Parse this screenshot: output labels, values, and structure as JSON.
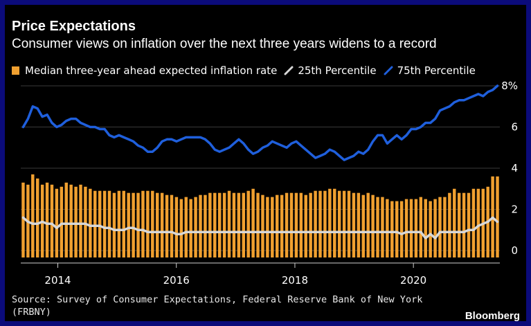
{
  "title": "Price Expectations",
  "subtitle": "Consumer views on inflation over the next three years widens to a record",
  "source": "Source: Survey of Consumer Expectations, Federal Reserve Bank of New York (FRBNY)",
  "brand": "Bloomberg",
  "chart_data": {
    "type": "bar",
    "x_start": "2013-06",
    "x_end": "2021-06",
    "ylim": [
      0,
      8
    ],
    "yticks": [
      {
        "value": 0,
        "label": "0"
      },
      {
        "value": 2,
        "label": "2"
      },
      {
        "value": 4,
        "label": "4"
      },
      {
        "value": 6,
        "label": "6"
      },
      {
        "value": 8,
        "label": "8%"
      }
    ],
    "xticks": [
      {
        "date": "2014-01",
        "label": "2014"
      },
      {
        "date": "2016-01",
        "label": "2016"
      },
      {
        "date": "2018-01",
        "label": "2018"
      },
      {
        "date": "2020-01",
        "label": "2020"
      }
    ],
    "grid": true,
    "legend_position": "top",
    "series": [
      {
        "name": "Median three-year ahead expected inflation rate",
        "type": "bar",
        "color": "#f0a030",
        "values": [
          3.3,
          3.2,
          3.7,
          3.5,
          3.2,
          3.3,
          3.2,
          3.0,
          3.1,
          3.3,
          3.2,
          3.1,
          3.2,
          3.1,
          3.0,
          2.9,
          2.9,
          2.9,
          2.9,
          2.8,
          2.9,
          2.9,
          2.8,
          2.8,
          2.8,
          2.9,
          2.9,
          2.9,
          2.8,
          2.8,
          2.7,
          2.7,
          2.6,
          2.5,
          2.6,
          2.5,
          2.6,
          2.7,
          2.7,
          2.8,
          2.8,
          2.8,
          2.8,
          2.9,
          2.8,
          2.8,
          2.8,
          2.9,
          3.0,
          2.8,
          2.7,
          2.6,
          2.6,
          2.7,
          2.7,
          2.8,
          2.8,
          2.8,
          2.8,
          2.7,
          2.8,
          2.9,
          2.9,
          2.9,
          3.0,
          3.0,
          2.9,
          2.9,
          2.9,
          2.8,
          2.8,
          2.7,
          2.8,
          2.7,
          2.6,
          2.6,
          2.5,
          2.4,
          2.4,
          2.4,
          2.5,
          2.5,
          2.5,
          2.6,
          2.5,
          2.4,
          2.5,
          2.6,
          2.6,
          2.8,
          3.0,
          2.8,
          2.8,
          2.8,
          3.0,
          3.0,
          3.0,
          3.1,
          3.6,
          3.6
        ]
      },
      {
        "name": "25th Percentile",
        "type": "line",
        "color": "#d7d7d7",
        "values": [
          1.6,
          1.4,
          1.3,
          1.3,
          1.4,
          1.3,
          1.3,
          1.1,
          1.3,
          1.3,
          1.3,
          1.3,
          1.3,
          1.3,
          1.2,
          1.2,
          1.2,
          1.1,
          1.1,
          1.0,
          1.0,
          1.0,
          1.1,
          1.1,
          1.0,
          1.0,
          0.9,
          0.9,
          0.9,
          0.9,
          0.9,
          0.9,
          0.8,
          0.8,
          0.9,
          0.9,
          0.9,
          0.9,
          0.9,
          0.9,
          0.9,
          0.9,
          0.9,
          0.9,
          0.9,
          0.9,
          0.9,
          0.9,
          0.9,
          0.9,
          0.9,
          0.9,
          0.9,
          0.9,
          0.9,
          0.9,
          0.9,
          0.9,
          0.9,
          0.9,
          0.9,
          0.9,
          0.9,
          0.9,
          0.9,
          0.9,
          0.9,
          0.9,
          0.9,
          0.9,
          0.9,
          0.9,
          0.9,
          0.9,
          0.9,
          0.9,
          0.9,
          0.9,
          0.9,
          0.8,
          0.9,
          0.9,
          0.9,
          0.9,
          0.6,
          0.8,
          0.6,
          0.9,
          0.9,
          0.9,
          0.9,
          0.9,
          0.9,
          1.0,
          1.0,
          1.2,
          1.3,
          1.4,
          1.6,
          1.4
        ]
      },
      {
        "name": "75th Percentile",
        "type": "line",
        "color": "#1f5fdc",
        "values": [
          6.0,
          6.4,
          7.0,
          6.9,
          6.5,
          6.6,
          6.2,
          6.0,
          6.1,
          6.3,
          6.4,
          6.4,
          6.2,
          6.1,
          6.0,
          6.0,
          5.9,
          5.9,
          5.6,
          5.5,
          5.6,
          5.5,
          5.4,
          5.3,
          5.1,
          5.0,
          4.8,
          4.8,
          5.0,
          5.3,
          5.4,
          5.4,
          5.3,
          5.4,
          5.5,
          5.5,
          5.5,
          5.5,
          5.4,
          5.2,
          4.9,
          4.8,
          4.9,
          5.0,
          5.2,
          5.4,
          5.2,
          4.9,
          4.7,
          4.8,
          5.0,
          5.1,
          5.3,
          5.2,
          5.1,
          5.0,
          5.2,
          5.3,
          5.1,
          4.9,
          4.7,
          4.5,
          4.6,
          4.7,
          4.9,
          4.8,
          4.6,
          4.4,
          4.5,
          4.6,
          4.8,
          4.7,
          4.9,
          5.3,
          5.6,
          5.6,
          5.2,
          5.4,
          5.6,
          5.4,
          5.6,
          5.9,
          5.9,
          6.0,
          6.2,
          6.2,
          6.4,
          6.8,
          6.9,
          7.0,
          7.2,
          7.3,
          7.3,
          7.4,
          7.5,
          7.6,
          7.5,
          7.7,
          7.8,
          8.0
        ]
      }
    ]
  }
}
